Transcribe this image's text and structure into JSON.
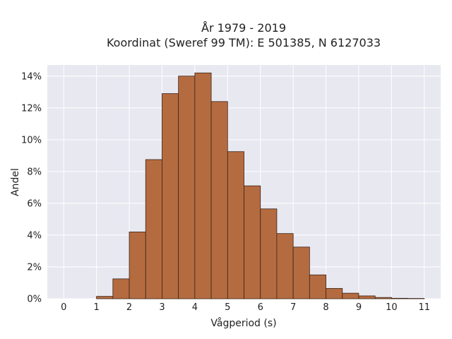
{
  "chart_data": {
    "type": "bar",
    "title_lines": [
      "År 1979 - 2019",
      "Koordinat (Sweref 99 TM): E 501385, N 6127033"
    ],
    "xlabel": "Vågperiod (s)",
    "ylabel": "Andel",
    "xlim": [
      -0.5,
      11.5
    ],
    "ylim": [
      0,
      14.7
    ],
    "x_ticks": [
      0,
      1,
      2,
      3,
      4,
      5,
      6,
      7,
      8,
      9,
      10,
      11
    ],
    "x_tick_labels": [
      "0",
      "1",
      "2",
      "3",
      "4",
      "5",
      "6",
      "7",
      "8",
      "9",
      "10",
      "11"
    ],
    "y_ticks": [
      0,
      2,
      4,
      6,
      8,
      10,
      12,
      14
    ],
    "y_tick_labels": [
      "0%",
      "2%",
      "4%",
      "6%",
      "8%",
      "10%",
      "12%",
      "14%"
    ],
    "grid": true,
    "bin_width": 0.5,
    "bins": [
      {
        "start": 1.0,
        "value": 0.15
      },
      {
        "start": 1.5,
        "value": 1.25
      },
      {
        "start": 2.0,
        "value": 4.2
      },
      {
        "start": 2.5,
        "value": 8.75
      },
      {
        "start": 3.0,
        "value": 12.9
      },
      {
        "start": 3.5,
        "value": 14.0
      },
      {
        "start": 4.0,
        "value": 14.2
      },
      {
        "start": 4.5,
        "value": 12.4
      },
      {
        "start": 5.0,
        "value": 9.25
      },
      {
        "start": 5.5,
        "value": 7.1
      },
      {
        "start": 6.0,
        "value": 5.65
      },
      {
        "start": 6.5,
        "value": 4.1
      },
      {
        "start": 7.0,
        "value": 3.25
      },
      {
        "start": 7.5,
        "value": 1.5
      },
      {
        "start": 8.0,
        "value": 0.65
      },
      {
        "start": 8.5,
        "value": 0.35
      },
      {
        "start": 9.0,
        "value": 0.18
      },
      {
        "start": 9.5,
        "value": 0.08
      },
      {
        "start": 10.0,
        "value": 0.03
      },
      {
        "start": 10.5,
        "value": 0.02
      }
    ],
    "colors": {
      "bar_fill": "#b56b40",
      "bar_stroke": "#3a2417",
      "plot_background": "#e8e8f1",
      "grid": "#ffffff"
    }
  }
}
